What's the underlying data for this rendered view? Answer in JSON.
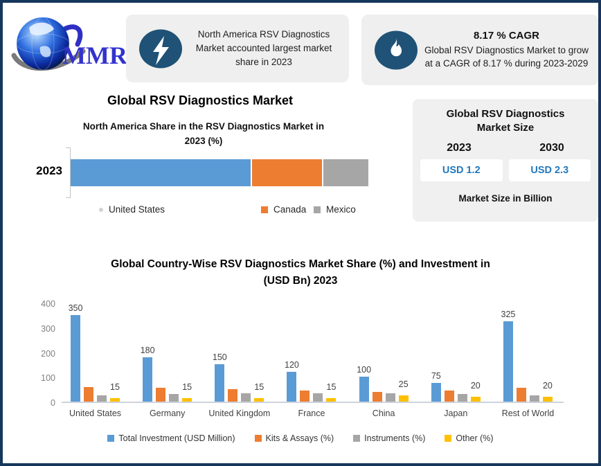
{
  "colors": {
    "border_navy": "#16375c",
    "icon_navy": "#1f5276",
    "box_gray": "#efefef",
    "series_blue": "#5b9bd5",
    "series_orange": "#ed7d31",
    "series_gray": "#a6a6a6",
    "series_yellow": "#ffc000",
    "value_blue": "#2178be"
  },
  "logo": {
    "text": "MMR"
  },
  "facts": {
    "fact1": {
      "icon": "lightning-bolt-icon",
      "text": "North America RSV Diagnostics Market accounted largest market share in 2023"
    },
    "fact2": {
      "icon": "flame-icon",
      "title": "8.17 % CAGR",
      "text": "Global RSV Diagnostics Market to grow at a CAGR of 8.17 % during 2023-2029"
    }
  },
  "section_top_chart": {
    "title": "Global RSV Diagnostics Market",
    "subtitle_line1": "North America Share in the RSV Diagnostics Market in",
    "subtitle_line2": "2023 (%)",
    "row_label": "2023"
  },
  "market_size_panel": {
    "title_line1": "Global RSV Diagnostics",
    "title_line2": "Market Size",
    "year_left": "2023",
    "year_right": "2030",
    "value_left": "USD 1.2",
    "value_right": "USD 2.3",
    "footnote": "Market Size in Billion"
  },
  "section_bottom_chart": {
    "title_line1": "Global Country-Wise RSV Diagnostics Market Share (%) and Investment in",
    "title_line2": "(USD Bn) 2023"
  },
  "chart_data": [
    {
      "type": "bar",
      "variant": "stacked-horizontal",
      "title": "Global RSV Diagnostics Market",
      "subtitle": "North America Share in the RSV Diagnostics Market in 2023 (%)",
      "categories": [
        "2023"
      ],
      "series": [
        {
          "name": "United States",
          "values": [
            61
          ],
          "color": "#5b9bd5"
        },
        {
          "name": "Canada",
          "values": [
            24
          ],
          "color": "#ed7d31"
        },
        {
          "name": "Mexico",
          "values": [
            15
          ],
          "color": "#a6a6a6"
        }
      ],
      "xlim": [
        0,
        100
      ],
      "legend_position": "bottom",
      "grid": false
    },
    {
      "type": "bar",
      "variant": "grouped-vertical",
      "title": "Global Country-Wise RSV Diagnostics Market Share (%) and Investment in (USD Bn) 2023",
      "categories": [
        "United States",
        "Germany",
        "United Kingdom",
        "France",
        "China",
        "Japan",
        "Rest of World"
      ],
      "series": [
        {
          "name": "Total Investment (USD Million)",
          "color": "#5b9bd5",
          "values": [
            350,
            180,
            150,
            120,
            100,
            75,
            325
          ],
          "show_labels": true
        },
        {
          "name": "Kits & Assays (%)",
          "color": "#ed7d31",
          "values": [
            60,
            55,
            50,
            45,
            40,
            45,
            55
          ],
          "show_labels": false
        },
        {
          "name": "Instruments (%)",
          "color": "#a6a6a6",
          "values": [
            25,
            30,
            35,
            35,
            35,
            30,
            25
          ],
          "show_labels": false
        },
        {
          "name": "Other (%)",
          "color": "#ffc000",
          "values": [
            15,
            15,
            15,
            15,
            25,
            20,
            20
          ],
          "show_labels": true
        }
      ],
      "ylim": [
        0,
        400
      ],
      "yticks": [
        0,
        100,
        200,
        300,
        400
      ],
      "legend_position": "bottom",
      "grid": false
    }
  ]
}
